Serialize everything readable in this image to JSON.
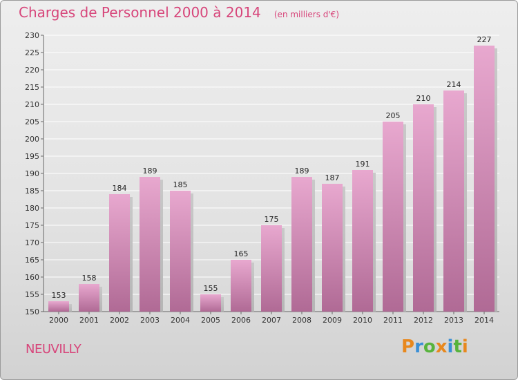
{
  "title": "Charges de Personnel 2000 à 2014",
  "unit_note": "(en milliers d'€)",
  "commune": "NEUVILLY",
  "logo": {
    "text": "Proxiti",
    "letters": [
      "P",
      "r",
      "o",
      "x",
      "i",
      "t",
      "i"
    ],
    "colors": [
      "#e8881d",
      "#3a8fd6",
      "#57b33c",
      "#e8881d",
      "#3a8fd6",
      "#57b33c",
      "#e8881d"
    ]
  },
  "colors": {
    "bar_top": "#e8a8cf",
    "bar_bottom": "#b06a95",
    "accent": "#d7457a"
  },
  "chart_data": {
    "type": "bar",
    "title": "Charges de Personnel 2000 à 2014",
    "subtitle": "(en milliers d'€)",
    "xlabel": "",
    "ylabel": "",
    "categories": [
      "2000",
      "2001",
      "2002",
      "2003",
      "2004",
      "2005",
      "2006",
      "2007",
      "2008",
      "2009",
      "2010",
      "2011",
      "2012",
      "2013",
      "2014"
    ],
    "values": [
      153,
      158,
      184,
      189,
      185,
      155,
      165,
      175,
      189,
      187,
      191,
      205,
      210,
      214,
      227
    ],
    "ylim": [
      150,
      230
    ],
    "yticks": [
      150,
      155,
      160,
      165,
      170,
      175,
      180,
      185,
      190,
      195,
      200,
      205,
      210,
      215,
      220,
      225,
      230
    ],
    "grid": true,
    "data_labels": true
  }
}
